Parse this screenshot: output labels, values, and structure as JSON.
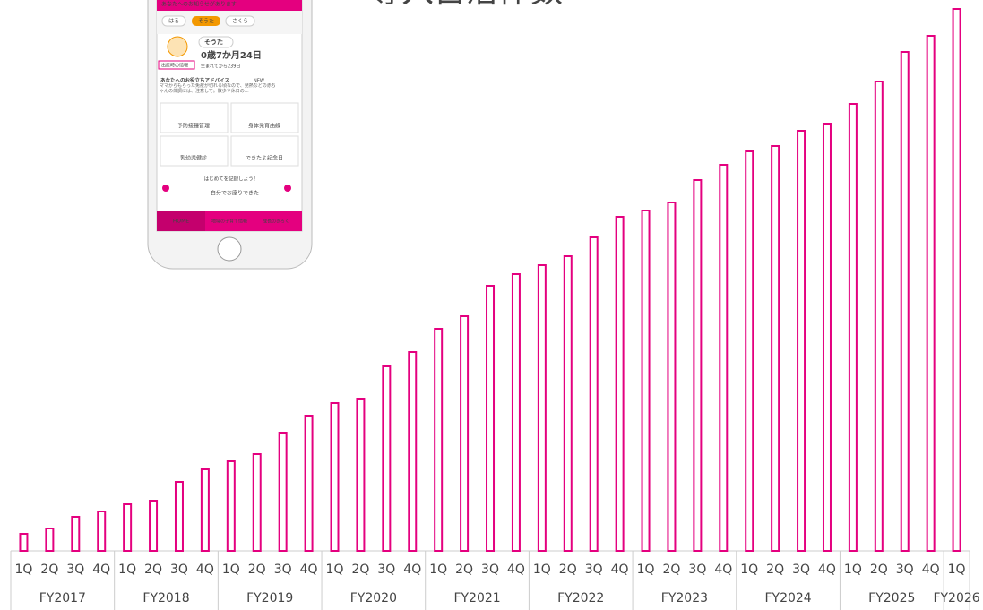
{
  "chart_data": {
    "type": "bar",
    "title": "導入自治体数",
    "color": "#e4007f",
    "categories": [
      "1Q",
      "2Q",
      "3Q",
      "4Q",
      "1Q",
      "2Q",
      "3Q",
      "4Q",
      "1Q",
      "2Q",
      "3Q",
      "4Q",
      "1Q",
      "2Q",
      "3Q",
      "4Q",
      "1Q",
      "2Q",
      "3Q",
      "4Q",
      "1Q",
      "2Q",
      "3Q",
      "4Q",
      "1Q",
      "2Q",
      "3Q",
      "4Q",
      "1Q",
      "2Q",
      "3Q",
      "4Q",
      "1Q",
      "2Q",
      "3Q",
      "4Q",
      "1Q"
    ],
    "values": [
      19,
      25,
      38,
      44,
      52,
      56,
      77,
      91,
      100,
      108,
      132,
      151,
      165,
      170,
      206,
      222,
      248,
      262,
      296,
      309,
      319,
      329,
      350,
      373,
      380,
      389,
      414,
      431,
      446,
      452,
      469,
      477,
      499,
      524,
      557,
      575,
      605
    ],
    "fiscal_years": [
      "FY2017",
      "FY2018",
      "FY2019",
      "FY2020",
      "FY2021",
      "FY2022",
      "FY2023",
      "FY2024",
      "FY2025",
      "FY2026"
    ]
  },
  "phone": {
    "notice": "あなたへのお知らせがあります",
    "tabs": [
      "はる",
      "そうた",
      "さくら"
    ],
    "child_name": "そうた",
    "age": "0歳7か月24日",
    "birth_info": "出産時の情報",
    "days": "生まれてから239日",
    "advice_title": "あなたへのお役立ちアドバイス",
    "advice_new": "NEW",
    "advice_text": "ママからもらった免疫が切れる頃なので、発熱などの赤ちゃんの体調には、注意して。散歩や休日の…",
    "menu": [
      "予防接種管理",
      "身体発育曲線",
      "乳幼児健診",
      "できたよ記念日"
    ],
    "banner": "はじめてを記録しよう！",
    "banner_sub": "自分でお座りできた",
    "nav": [
      "HOME",
      "地域の子育て情報",
      "成長のきろく"
    ]
  }
}
